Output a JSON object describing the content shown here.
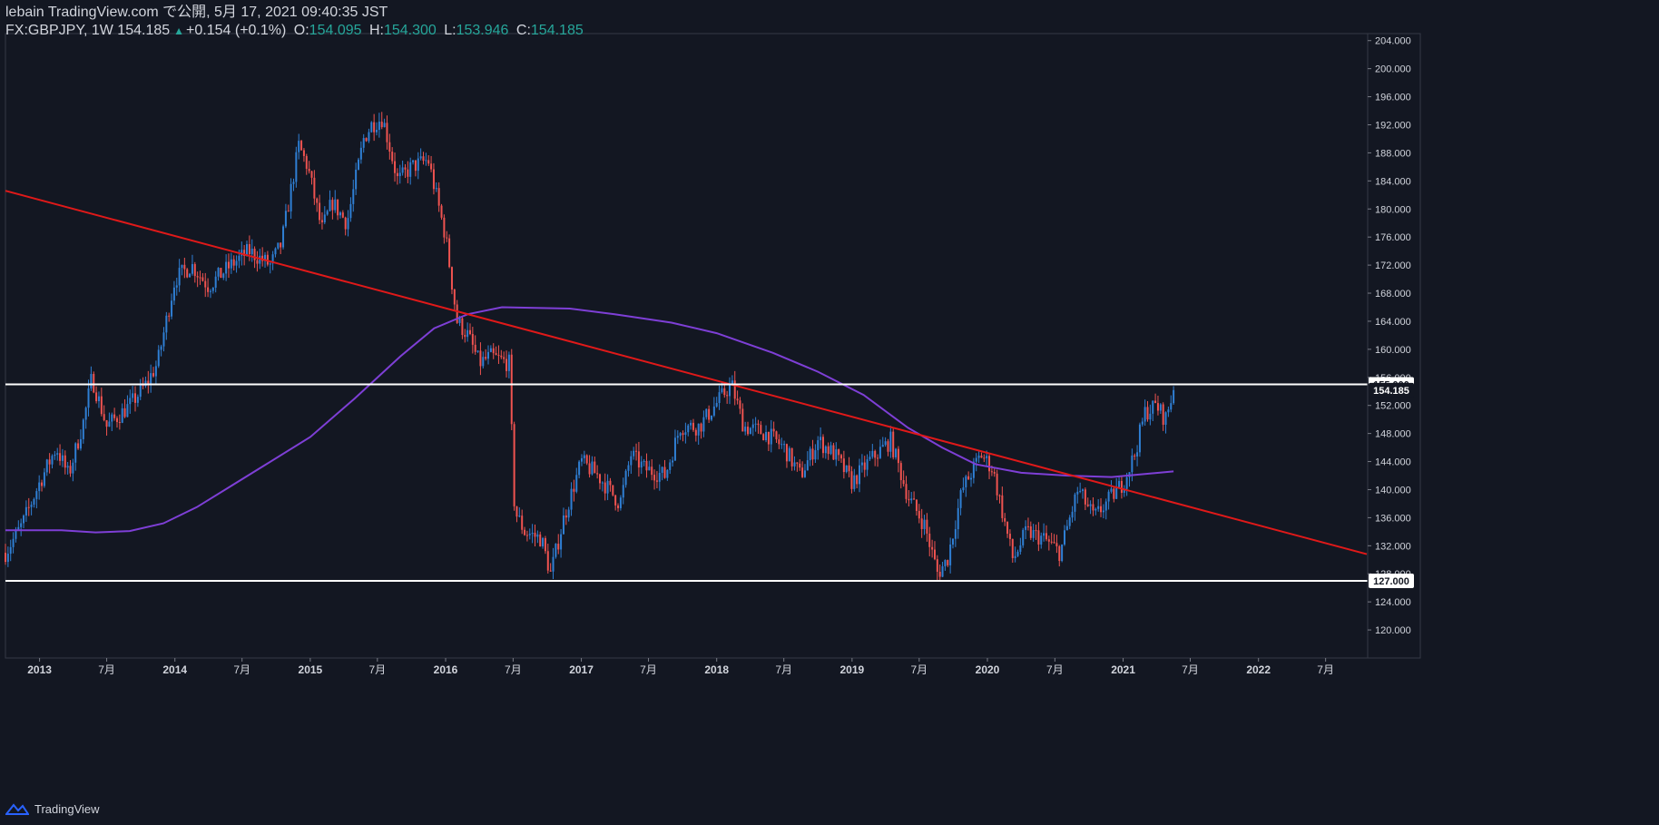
{
  "header": {
    "publish_line": "lebain TradingView.com で公開, 5月 17, 2021 09:40:35 JST",
    "symbol": "FX:GBPJPY, 1W 154.185",
    "change_arrow": "▲",
    "change": "+0.154 (+0.1%)",
    "open_label": "O:",
    "open": "154.095",
    "high_label": "H:",
    "high": "154.300",
    "low_label": "L:",
    "low": "153.946",
    "close_label": "C:",
    "close": "154.185"
  },
  "footer": {
    "brand": "TradingView"
  },
  "colors": {
    "background": "#131722",
    "up": "#2f7fd4",
    "down": "#ef5350",
    "trendline": "#e01919",
    "moving_average": "#7e3fd6",
    "horizontal_lines": "#ffffff",
    "grid": "#2a2e39"
  },
  "chart_data": {
    "type": "candlestick",
    "ylim": [
      116,
      205
    ],
    "y_ticks": [
      120,
      124,
      128,
      132,
      136,
      140,
      144,
      148,
      152,
      156,
      160,
      164,
      168,
      172,
      176,
      180,
      184,
      188,
      192,
      196,
      200,
      204
    ],
    "y_tick_labels": [
      "120.000",
      "124.000",
      "128.000",
      "132.000",
      "136.000",
      "140.000",
      "144.000",
      "148.000",
      "152.000",
      "156.000",
      "160.000",
      "164.000",
      "168.000",
      "172.000",
      "176.000",
      "180.000",
      "184.000",
      "188.000",
      "192.000",
      "196.000",
      "200.000",
      "204.000"
    ],
    "x_range": [
      "2012-10-01",
      "2022-10-20"
    ],
    "x_ticks": [
      {
        "date": "2013-01-01",
        "label": "2013"
      },
      {
        "date": "2013-07-01",
        "label": "7月"
      },
      {
        "date": "2014-01-01",
        "label": "2014"
      },
      {
        "date": "2014-07-01",
        "label": "7月"
      },
      {
        "date": "2015-01-01",
        "label": "2015"
      },
      {
        "date": "2015-07-01",
        "label": "7月"
      },
      {
        "date": "2016-01-01",
        "label": "2016"
      },
      {
        "date": "2016-07-01",
        "label": "7月"
      },
      {
        "date": "2017-01-01",
        "label": "2017"
      },
      {
        "date": "2017-07-01",
        "label": "7月"
      },
      {
        "date": "2018-01-01",
        "label": "2018"
      },
      {
        "date": "2018-07-01",
        "label": "7月"
      },
      {
        "date": "2019-01-01",
        "label": "2019"
      },
      {
        "date": "2019-07-01",
        "label": "7月"
      },
      {
        "date": "2020-01-01",
        "label": "2020"
      },
      {
        "date": "2020-07-01",
        "label": "7月"
      },
      {
        "date": "2021-01-01",
        "label": "2021"
      },
      {
        "date": "2021-07-01",
        "label": "7月"
      },
      {
        "date": "2022-01-01",
        "label": "2022"
      },
      {
        "date": "2022-07-01",
        "label": "7月"
      }
    ],
    "close_path": [
      [
        "2012-10-01",
        131
      ],
      [
        "2012-11-15",
        135
      ],
      [
        "2013-01-01",
        141
      ],
      [
        "2013-02-15",
        146
      ],
      [
        "2013-03-20",
        142
      ],
      [
        "2013-05-01",
        150
      ],
      [
        "2013-05-22",
        156
      ],
      [
        "2013-07-01",
        149
      ],
      [
        "2013-09-01",
        152
      ],
      [
        "2013-10-15",
        155
      ],
      [
        "2013-11-15",
        158
      ],
      [
        "2014-01-01",
        170
      ],
      [
        "2014-02-15",
        172
      ],
      [
        "2014-04-01",
        169
      ],
      [
        "2014-06-01",
        172
      ],
      [
        "2014-07-20",
        174
      ],
      [
        "2014-09-15",
        172
      ],
      [
        "2014-10-15",
        175
      ],
      [
        "2014-12-01",
        189
      ],
      [
        "2014-12-25",
        186
      ],
      [
        "2015-02-01",
        177
      ],
      [
        "2015-03-01",
        181
      ],
      [
        "2015-04-10",
        178
      ],
      [
        "2015-05-25",
        190
      ],
      [
        "2015-06-15",
        192
      ],
      [
        "2015-07-15",
        193
      ],
      [
        "2015-08-25",
        184
      ],
      [
        "2015-10-01",
        186
      ],
      [
        "2015-11-15",
        187
      ],
      [
        "2016-01-01",
        176
      ],
      [
        "2016-02-01",
        164
      ],
      [
        "2016-03-01",
        162
      ],
      [
        "2016-04-01",
        158
      ],
      [
        "2016-05-01",
        159
      ],
      [
        "2016-06-20",
        158
      ],
      [
        "2016-07-05",
        137
      ],
      [
        "2016-08-01",
        134
      ],
      [
        "2016-09-15",
        133
      ],
      [
        "2016-10-10",
        128
      ],
      [
        "2016-11-15",
        136
      ],
      [
        "2017-01-01",
        144
      ],
      [
        "2017-02-15",
        142
      ],
      [
        "2017-04-15",
        138
      ],
      [
        "2017-05-15",
        145
      ],
      [
        "2017-06-20",
        143
      ],
      [
        "2017-08-15",
        142
      ],
      [
        "2017-09-25",
        149
      ],
      [
        "2017-11-15",
        149
      ],
      [
        "2018-01-25",
        154
      ],
      [
        "2018-02-10",
        155
      ],
      [
        "2018-03-15",
        149
      ],
      [
        "2018-05-15",
        148
      ],
      [
        "2018-07-01",
        146
      ],
      [
        "2018-08-15",
        142
      ],
      [
        "2018-10-01",
        147
      ],
      [
        "2018-11-15",
        145
      ],
      [
        "2019-01-01",
        141
      ],
      [
        "2019-02-15",
        144
      ],
      [
        "2019-04-15",
        147
      ],
      [
        "2019-06-01",
        139
      ],
      [
        "2019-07-15",
        135
      ],
      [
        "2019-08-20",
        128
      ],
      [
        "2019-09-15",
        130
      ],
      [
        "2019-10-25",
        140
      ],
      [
        "2019-12-15",
        145
      ],
      [
        "2020-01-15",
        143
      ],
      [
        "2020-03-10",
        130
      ],
      [
        "2020-04-15",
        134
      ],
      [
        "2020-06-01",
        133
      ],
      [
        "2020-07-15",
        131
      ],
      [
        "2020-09-01",
        140
      ],
      [
        "2020-10-15",
        136
      ],
      [
        "2020-11-15",
        138
      ],
      [
        "2021-01-01",
        141
      ],
      [
        "2021-02-01",
        145
      ],
      [
        "2021-03-01",
        151
      ],
      [
        "2021-04-01",
        152
      ],
      [
        "2021-04-25",
        150
      ],
      [
        "2021-05-17",
        154.185
      ]
    ],
    "moving_average_path": [
      [
        "2012-10-01",
        134.2
      ],
      [
        "2013-03-01",
        134.2
      ],
      [
        "2013-06-01",
        133.9
      ],
      [
        "2013-09-01",
        134.1
      ],
      [
        "2013-12-01",
        135.2
      ],
      [
        "2014-03-01",
        137.5
      ],
      [
        "2014-06-01",
        140.5
      ],
      [
        "2014-09-01",
        143.5
      ],
      [
        "2015-01-01",
        147.5
      ],
      [
        "2015-05-01",
        153
      ],
      [
        "2015-09-01",
        159
      ],
      [
        "2015-12-01",
        163
      ],
      [
        "2016-03-01",
        165
      ],
      [
        "2016-06-01",
        166
      ],
      [
        "2016-12-01",
        165.8
      ],
      [
        "2017-04-01",
        165
      ],
      [
        "2017-09-01",
        163.8
      ],
      [
        "2018-01-01",
        162.3
      ],
      [
        "2018-06-01",
        159.5
      ],
      [
        "2018-10-01",
        156.8
      ],
      [
        "2019-02-01",
        153.5
      ],
      [
        "2019-06-01",
        148.8
      ],
      [
        "2019-09-01",
        146
      ],
      [
        "2019-12-01",
        143.6
      ],
      [
        "2020-04-01",
        142.4
      ],
      [
        "2020-08-01",
        142
      ],
      [
        "2020-12-01",
        141.8
      ],
      [
        "2021-05-17",
        142.6
      ]
    ],
    "trendline": [
      [
        "2012-10-01",
        182.6
      ],
      [
        "2022-10-20",
        130.8
      ]
    ],
    "horizontal_levels": [
      {
        "value": 155.0,
        "label": "155.000"
      },
      {
        "value": 127.0,
        "label": "127.000"
      }
    ],
    "last_price": {
      "value": 154.185,
      "label": "154.185"
    }
  }
}
